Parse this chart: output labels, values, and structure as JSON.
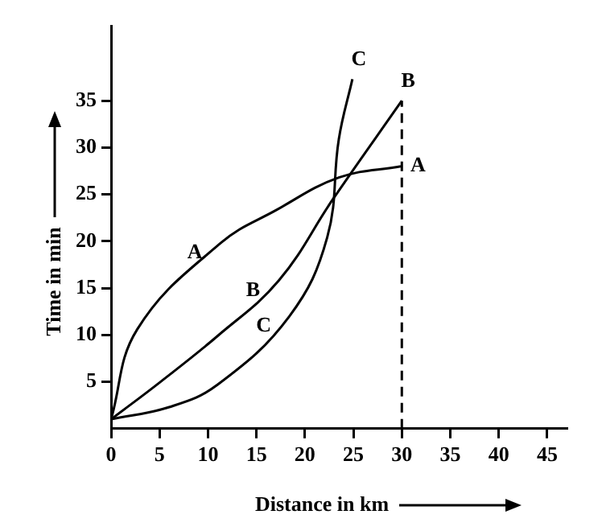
{
  "chart_data": {
    "type": "line",
    "xlabel": "Distance in km",
    "ylabel": "Time in min",
    "xlim": [
      0,
      47
    ],
    "ylim": [
      0,
      43
    ],
    "xticks": [
      0,
      5,
      10,
      15,
      20,
      25,
      30,
      35,
      40,
      45
    ],
    "yticks": [
      5,
      10,
      15,
      20,
      25,
      30,
      35
    ],
    "series": [
      {
        "name": "A",
        "color": "#000000",
        "x": [
          0,
          2.7,
          11.3,
          17,
          23.5,
          29.9
        ],
        "values": [
          1,
          10.6,
          19.8,
          23.3,
          26.8,
          28
        ]
      },
      {
        "name": "B",
        "color": "#000000",
        "x": [
          0,
          5.1,
          11,
          17.3,
          22.9,
          30
        ],
        "values": [
          1,
          5,
          9.9,
          15.8,
          24.5,
          35
        ]
      },
      {
        "name": "C",
        "color": "#000000",
        "x": [
          0,
          6,
          11,
          18.4,
          22.3,
          23.5,
          24.9
        ],
        "values": [
          1,
          2.3,
          4.7,
          12,
          20.4,
          30.9,
          37.3
        ]
      }
    ],
    "ref_lines": [
      {
        "axis": "x",
        "value": 30,
        "line_style": "dashed",
        "color": "#000000"
      }
    ],
    "annotations": [
      {
        "text": "A",
        "x": 11.3,
        "y": 19.8
      },
      {
        "text": "B",
        "x": 17.3,
        "y": 15.8
      },
      {
        "text": "C",
        "x": 18.4,
        "y": 12
      }
    ],
    "grid": false,
    "legend": false,
    "marker": "none",
    "line_style": "solid"
  }
}
